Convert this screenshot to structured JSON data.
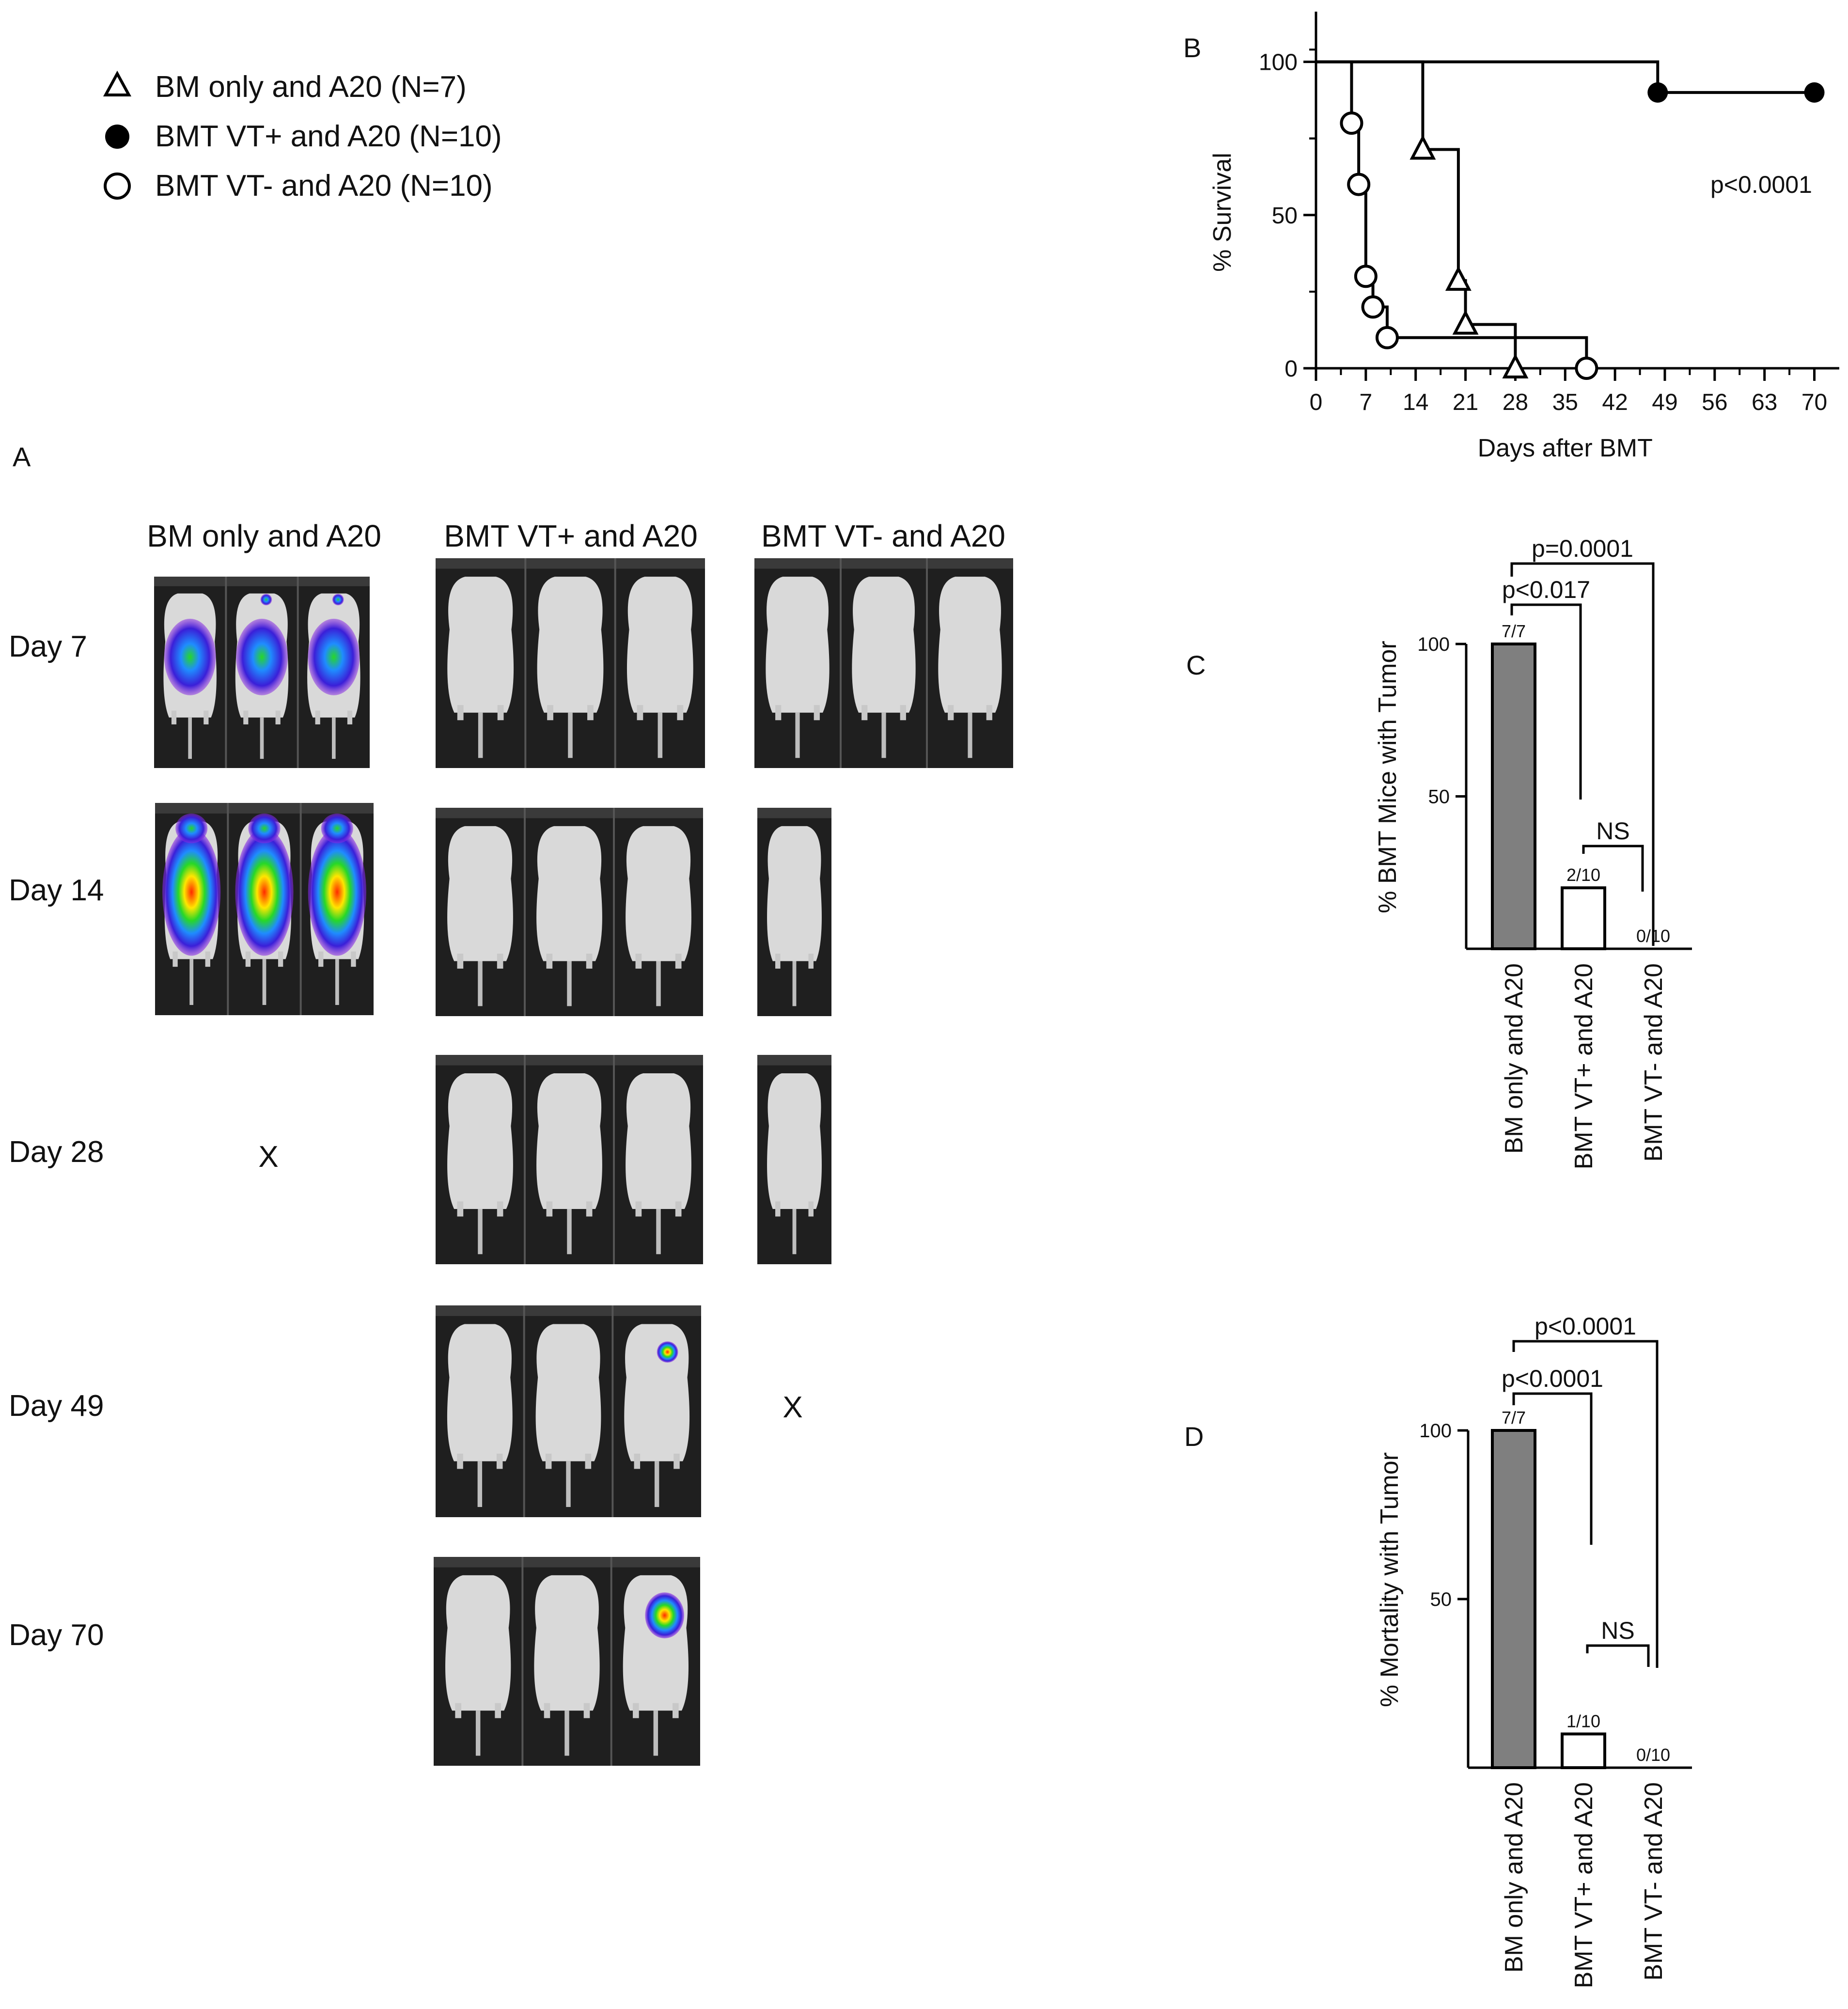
{
  "legend": [
    {
      "marker": "open-triangle",
      "label": "BM only and A20 (N=7)"
    },
    {
      "marker": "filled-circle",
      "label": "BMT VT+ and A20 (N=10)"
    },
    {
      "marker": "open-circle",
      "label": "BMT VT- and A20 (N=10)"
    }
  ],
  "panel_a": {
    "letter": "A",
    "columns": [
      "BM only and A20",
      "BMT VT+ and A20",
      "BMT VT- and A20"
    ],
    "rows": [
      "Day 7",
      "Day 14",
      "Day 28",
      "Day 49",
      "Day 70"
    ],
    "cells": [
      {
        "row": 0,
        "col": 0,
        "mice": 3,
        "signal": "strong"
      },
      {
        "row": 0,
        "col": 1,
        "mice": 3,
        "signal": "none"
      },
      {
        "row": 0,
        "col": 2,
        "mice": 3,
        "signal": "none"
      },
      {
        "row": 1,
        "col": 0,
        "mice": 3,
        "signal": "very-strong"
      },
      {
        "row": 1,
        "col": 1,
        "mice": 3,
        "signal": "none"
      },
      {
        "row": 1,
        "col": 2,
        "mice": 1,
        "signal": "none"
      },
      {
        "row": 2,
        "col": 0,
        "dead": "X"
      },
      {
        "row": 2,
        "col": 1,
        "mice": 3,
        "signal": "none"
      },
      {
        "row": 2,
        "col": 2,
        "mice": 1,
        "signal": "none"
      },
      {
        "row": 3,
        "col": 1,
        "mice": 3,
        "signal": "focal-third"
      },
      {
        "row": 3,
        "col": 2,
        "dead": "X"
      },
      {
        "row": 4,
        "col": 1,
        "mice": 3,
        "signal": "focal-third-large"
      }
    ],
    "colors": {
      "panel_bg": "#1f1f1f",
      "mouse": "#d9d9d9"
    }
  },
  "panel_b": {
    "letter": "B",
    "pvalue": "p<0.0001",
    "colors": {
      "line": "#000000"
    }
  },
  "panel_c": {
    "letter": "C",
    "comparisons": [
      {
        "text": "p=0.0001"
      },
      {
        "text": "p<0.017"
      },
      {
        "text": "NS"
      }
    ],
    "colors": {
      "filled_bar": "#7f7f7f",
      "open_bar": "#ffffff"
    }
  },
  "panel_d": {
    "letter": "D",
    "comparisons": [
      {
        "text": "p<0.0001"
      },
      {
        "text": "p<0.0001"
      },
      {
        "text": "NS"
      }
    ],
    "colors": {
      "filled_bar": "#7f7f7f",
      "open_bar": "#ffffff"
    }
  },
  "chart_data": [
    {
      "id": "B",
      "type": "line",
      "title": "",
      "xlabel": "Days after BMT",
      "ylabel": "% Survival",
      "xlim": [
        0,
        75
      ],
      "ylim": [
        0,
        105
      ],
      "xticks": [
        0,
        7,
        14,
        21,
        28,
        35,
        42,
        49,
        56,
        63,
        70
      ],
      "yticks": [
        0,
        50,
        100
      ],
      "grid": false,
      "series": [
        {
          "name": "BM only and A20 (N=7)",
          "marker": "open-triangle",
          "x": [
            0,
            15,
            20,
            28
          ],
          "y": [
            100,
            71.4,
            28.6,
            0
          ],
          "marked": [
            [
              15,
              71.4
            ],
            [
              20,
              28.6
            ],
            [
              21,
              14.3
            ],
            [
              28,
              0
            ]
          ],
          "steps": [
            [
              0,
              100
            ],
            [
              15,
              100
            ],
            [
              15,
              71.4
            ],
            [
              20,
              71.4
            ],
            [
              20,
              28.6
            ],
            [
              21,
              28.6
            ],
            [
              21,
              14.3
            ],
            [
              28,
              14.3
            ],
            [
              28,
              0
            ]
          ]
        },
        {
          "name": "BMT VT+ and A20 (N=10)",
          "marker": "filled-circle",
          "x": [
            0,
            48,
            70
          ],
          "y": [
            100,
            90,
            90
          ],
          "marked": [
            [
              48,
              90
            ],
            [
              70,
              90
            ]
          ],
          "steps": [
            [
              0,
              100
            ],
            [
              48,
              100
            ],
            [
              48,
              90
            ],
            [
              70,
              90
            ]
          ]
        },
        {
          "name": "BMT VT- and A20 (N=10)",
          "marker": "open-circle",
          "x": [
            0,
            5,
            6,
            7,
            8,
            10,
            38
          ],
          "y": [
            100,
            80,
            60,
            30,
            20,
            10,
            0
          ],
          "marked": [
            [
              5,
              80
            ],
            [
              6,
              60
            ],
            [
              7,
              30
            ],
            [
              8,
              20
            ],
            [
              10,
              10
            ],
            [
              38,
              0
            ]
          ],
          "steps": [
            [
              0,
              100
            ],
            [
              5,
              100
            ],
            [
              5,
              80
            ],
            [
              6,
              80
            ],
            [
              6,
              60
            ],
            [
              7,
              60
            ],
            [
              7,
              30
            ],
            [
              8,
              30
            ],
            [
              8,
              20
            ],
            [
              10,
              20
            ],
            [
              10,
              10
            ],
            [
              38,
              10
            ],
            [
              38,
              0
            ]
          ]
        }
      ]
    },
    {
      "id": "C",
      "type": "bar",
      "title": "",
      "xlabel": "",
      "ylabel": "% BMT Mice with Tumor",
      "categories": [
        "BM only and A20",
        "BMT VT+ and A20",
        "BMT VT- and A20"
      ],
      "values": [
        100,
        20,
        0
      ],
      "bar_labels": [
        "7/7",
        "2/10",
        "0/10"
      ],
      "fills": [
        "filled",
        "open",
        "open"
      ],
      "ylim": [
        0,
        100
      ],
      "yticks": [
        50,
        100
      ]
    },
    {
      "id": "D",
      "type": "bar",
      "title": "",
      "xlabel": "",
      "ylabel": "% Mortality with Tumor",
      "categories": [
        "BM only and A20",
        "BMT VT+ and A20",
        "BMT VT- and A20"
      ],
      "values": [
        100,
        10,
        0
      ],
      "bar_labels": [
        "7/7",
        "1/10",
        "0/10"
      ],
      "fills": [
        "filled",
        "open",
        "open"
      ],
      "ylim": [
        0,
        100
      ],
      "yticks": [
        50,
        100
      ]
    }
  ]
}
